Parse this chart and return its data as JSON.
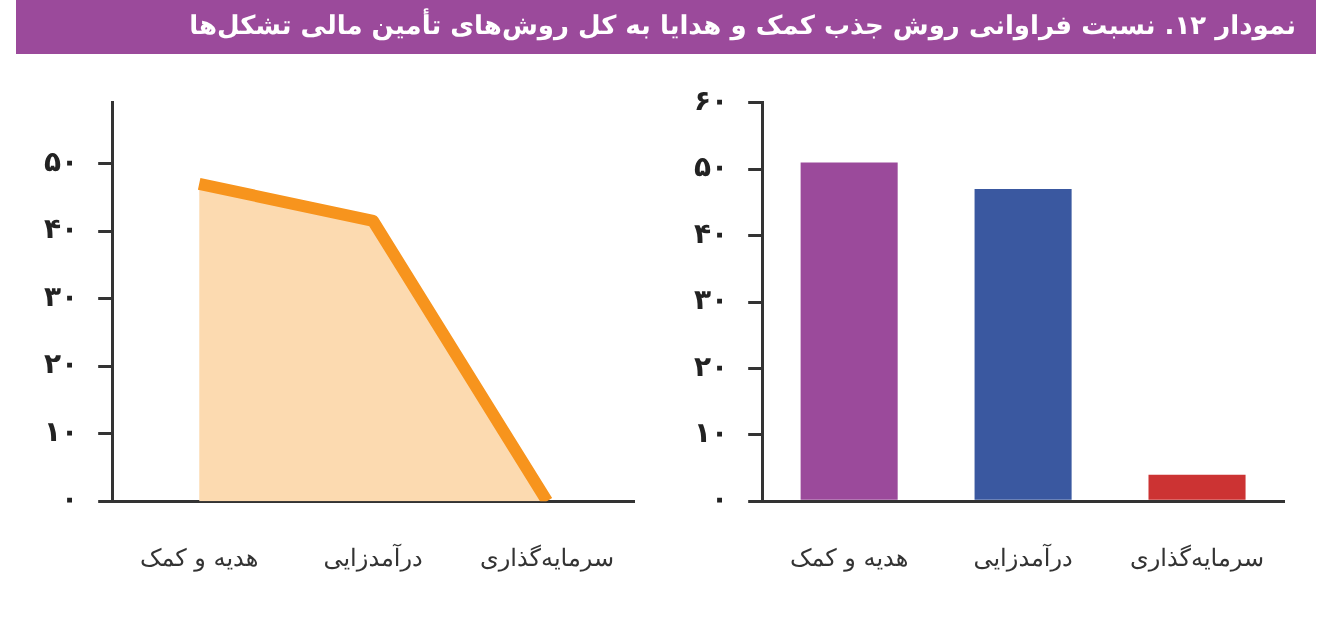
{
  "chart_data": [
    {
      "type": "area",
      "title": "نمودار ۱۲. نسبت فراوانی روش جذب کمک و هدایا به کل روش‌های تأمین مالی تشکل‌ها",
      "categories": [
        "هدیه و کمک",
        "درآمدزایی",
        "سرمایه‌گذاری"
      ],
      "series": [
        {
          "color": "#f7941d",
          "values": [
            47,
            41.5,
            0
          ]
        }
      ],
      "ylim": [
        0,
        59
      ],
      "yticks": [
        {
          "value": 0,
          "label": "۰"
        },
        {
          "value": 10,
          "label": "۱۰"
        },
        {
          "value": 20,
          "label": "۲۰"
        },
        {
          "value": 30,
          "label": "۳۰"
        },
        {
          "value": 40,
          "label": "۴۰"
        },
        {
          "value": 50,
          "label": "۵۰"
        }
      ]
    },
    {
      "type": "bar",
      "categories": [
        "هدیه و کمک",
        "درآمدزایی",
        "سرمایه‌گذاری"
      ],
      "values": [
        51,
        47,
        4
      ],
      "colors": [
        "#9b4a9b",
        "#3a58a0",
        "#cc3333"
      ],
      "ylim": [
        0,
        60
      ],
      "yticks": [
        {
          "value": 0,
          "label": "۰"
        },
        {
          "value": 10,
          "label": "۱۰"
        },
        {
          "value": 20,
          "label": "۲۰"
        },
        {
          "value": 30,
          "label": "۳۰"
        },
        {
          "value": 40,
          "label": "۴۰"
        },
        {
          "value": 50,
          "label": "۵۰"
        },
        {
          "value": 60,
          "label": "۶۰"
        }
      ]
    }
  ]
}
